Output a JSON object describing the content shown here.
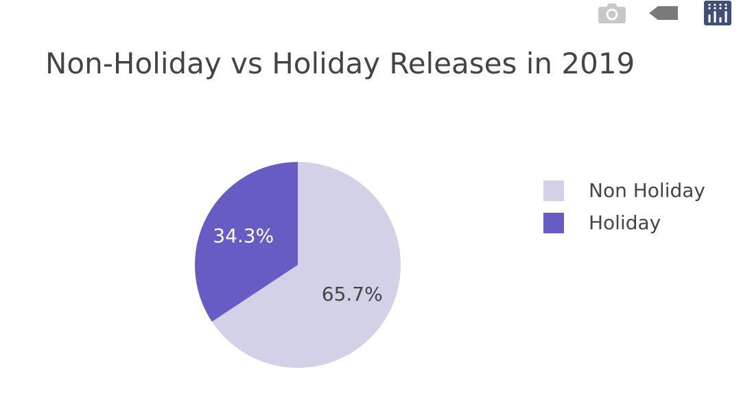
{
  "modebar": {
    "items": [
      {
        "name": "camera-icon",
        "color": "#c8c8c8"
      },
      {
        "name": "tag-icon",
        "color": "#7a7a7a"
      },
      {
        "name": "plotly-logo-icon",
        "color": "#3f4f75"
      }
    ]
  },
  "chart_data": {
    "type": "pie",
    "title": "Non-Holiday vs Holiday Releases in 2019",
    "slices": [
      {
        "label": "Non Holiday",
        "value": 65.7,
        "text": "65.7%",
        "color": "#d3d1e8",
        "text_color": "#444444"
      },
      {
        "label": "Holiday",
        "value": 34.3,
        "text": "34.3%",
        "color": "#675cc4",
        "text_color": "#ffffff"
      }
    ],
    "legend_position": "right",
    "direction": "clockwise",
    "start": "12 o'clock"
  }
}
